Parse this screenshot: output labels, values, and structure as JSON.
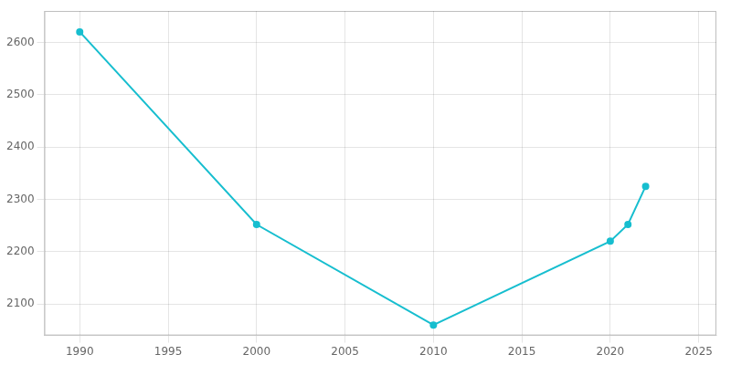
{
  "chart_data": {
    "type": "line",
    "x": [
      1990,
      2000,
      2010,
      2020,
      2021,
      2022
    ],
    "values": [
      2620,
      2252,
      2060,
      2220,
      2252,
      2325
    ],
    "color": "#17BECF",
    "marker": "circle",
    "xlim": [
      1988,
      2026
    ],
    "ylim": [
      2040,
      2660
    ],
    "xticks": [
      1990,
      1995,
      2000,
      2005,
      2010,
      2015,
      2020,
      2025
    ],
    "yticks": [
      2100,
      2200,
      2300,
      2400,
      2500,
      2600
    ],
    "grid": true
  }
}
